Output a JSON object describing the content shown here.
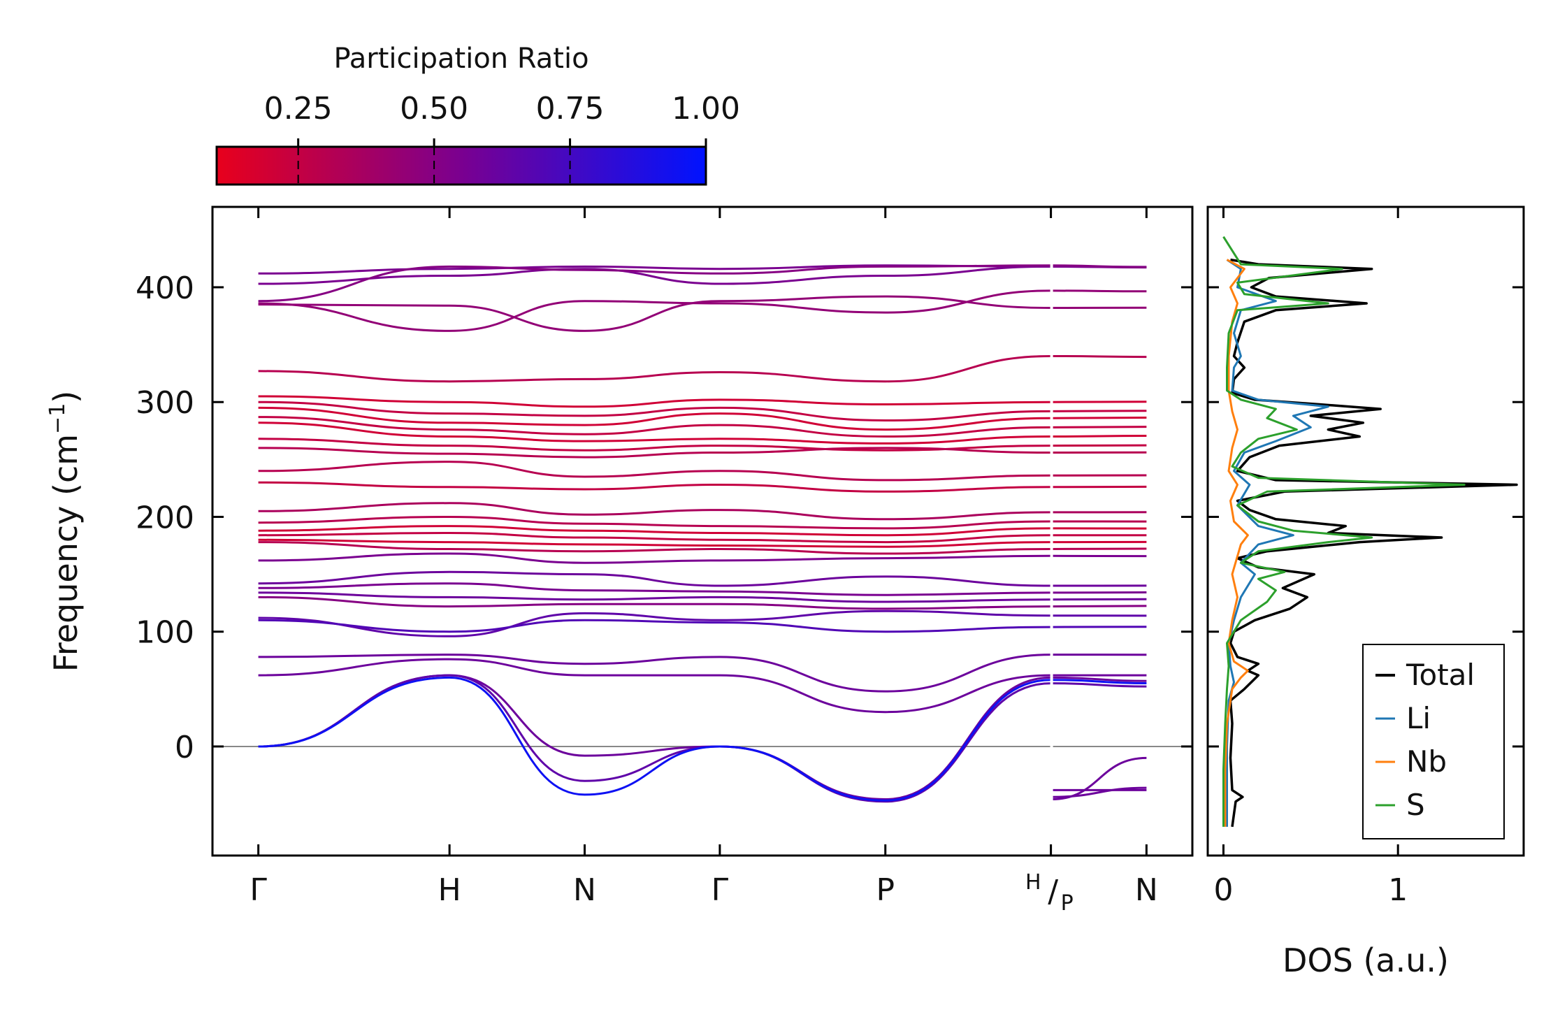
{
  "chart_data": [
    {
      "type": "line",
      "name": "phonon-band-structure",
      "ylabel_main": "Frequency (cm",
      "ylabel_sup": "−1",
      "ylabel_end": ")",
      "ylim": [
        -95,
        470
      ],
      "yticks": [
        0,
        100,
        200,
        300,
        400
      ],
      "ytick_labels": [
        "0",
        "100",
        "200",
        "300",
        "400"
      ],
      "path_labels": [
        "Γ",
        "H",
        "N",
        "Γ",
        "P"
      ],
      "path_positions": [
        0,
        1.0,
        1.707,
        2.414,
        3.28,
        4.146,
        4.646
      ],
      "hp_label": {
        "top": "H",
        "bottom": "P"
      },
      "end_label": "N",
      "xrange": [
        -0.24,
        4.886
      ],
      "segment_break": 4.146,
      "zero_line": true,
      "colormap": {
        "low_color": "#e8001c",
        "mid_color": "#7a0090",
        "high_color": "#0013ff"
      },
      "flat_bands": [
        {
          "values": [
            412,
            416,
            418,
            416,
            419,
            418
          ],
          "pr": 0.55
        },
        {
          "values": [
            403,
            410,
            416,
            403,
            410,
            418
          ],
          "pr": 0.55
        },
        {
          "values": [
            388,
            418,
            415,
            412,
            418,
            419
          ],
          "pr": 0.5
        },
        {
          "values": [
            386,
            362,
            388,
            386,
            378,
            397
          ],
          "pr": 0.45
        },
        {
          "values": [
            385,
            384,
            362,
            388,
            392,
            382
          ],
          "pr": 0.45
        },
        {
          "values": [
            327,
            318,
            320,
            326,
            318,
            340
          ],
          "pr": 0.3
        },
        {
          "values": [
            305,
            300,
            296,
            302,
            298,
            300
          ],
          "pr": 0.2
        },
        {
          "values": [
            300,
            290,
            288,
            295,
            284,
            292
          ],
          "pr": 0.25
        },
        {
          "values": [
            295,
            282,
            280,
            290,
            276,
            286
          ],
          "pr": 0.2
        },
        {
          "values": [
            287,
            276,
            272,
            280,
            270,
            278
          ],
          "pr": 0.25
        },
        {
          "values": [
            282,
            270,
            266,
            268,
            264,
            270
          ],
          "pr": 0.2
        },
        {
          "values": [
            268,
            262,
            258,
            262,
            258,
            262
          ],
          "pr": 0.25
        },
        {
          "values": [
            260,
            255,
            252,
            256,
            260,
            256
          ],
          "pr": 0.3
        },
        {
          "values": [
            240,
            248,
            235,
            240,
            232,
            236
          ],
          "pr": 0.3
        },
        {
          "values": [
            230,
            226,
            224,
            228,
            222,
            226
          ],
          "pr": 0.25
        },
        {
          "values": [
            205,
            212,
            202,
            206,
            198,
            204
          ],
          "pr": 0.35
        },
        {
          "values": [
            195,
            200,
            194,
            192,
            190,
            196
          ],
          "pr": 0.3
        },
        {
          "values": [
            188,
            192,
            188,
            186,
            184,
            190
          ],
          "pr": 0.2
        },
        {
          "values": [
            184,
            186,
            182,
            180,
            178,
            184
          ],
          "pr": 0.25
        },
        {
          "values": [
            180,
            178,
            176,
            175,
            174,
            178
          ],
          "pr": 0.2
        },
        {
          "values": [
            178,
            172,
            170,
            172,
            168,
            172
          ],
          "pr": 0.3
        },
        {
          "values": [
            162,
            168,
            160,
            162,
            164,
            166
          ],
          "pr": 0.55
        },
        {
          "values": [
            142,
            152,
            150,
            140,
            148,
            140
          ],
          "pr": 0.6
        },
        {
          "values": [
            138,
            142,
            136,
            135,
            132,
            134
          ],
          "pr": 0.55
        },
        {
          "values": [
            134,
            130,
            128,
            130,
            126,
            128
          ],
          "pr": 0.6
        },
        {
          "values": [
            130,
            122,
            124,
            124,
            120,
            122
          ],
          "pr": 0.5
        },
        {
          "values": [
            112,
            96,
            116,
            110,
            118,
            114
          ],
          "pr": 0.65
        },
        {
          "values": [
            110,
            100,
            110,
            108,
            100,
            104
          ],
          "pr": 0.7
        }
      ],
      "acoustic_bands": [
        {
          "values": [
            78,
            80,
            72,
            78,
            48,
            80
          ],
          "pr": 0.6
        },
        {
          "values": [
            62,
            76,
            62,
            62,
            30,
            62
          ],
          "pr": 0.6
        },
        {
          "values": [
            0,
            62,
            -8,
            0,
            -46,
            60
          ],
          "pr": 0.6
        },
        {
          "values": [
            0,
            62,
            -30,
            0,
            -48,
            55
          ],
          "pr": 0.65
        },
        {
          "values": [
            0,
            60,
            -42,
            0,
            -47,
            58
          ],
          "pr": 0.95
        }
      ],
      "last_segment_extra": [
        {
          "values": [
            -46,
            -10
          ],
          "pr": 0.6
        },
        {
          "values": [
            -38,
            -38
          ],
          "pr": 0.6
        },
        {
          "values": [
            -44,
            -36
          ],
          "pr": 0.6
        }
      ]
    },
    {
      "type": "line",
      "name": "phonon-dos",
      "xlabel": "DOS (a.u.)",
      "xlim": [
        -0.09,
        1.72
      ],
      "xticks": [
        0,
        1
      ],
      "xtick_labels": [
        "0",
        "1"
      ],
      "ylim": [
        -95,
        470
      ],
      "series": [
        {
          "name": "Total",
          "color": "#000000",
          "points": [
            [
              0.05,
              -70
            ],
            [
              0.07,
              -48
            ],
            [
              0.11,
              -44
            ],
            [
              0.05,
              -38
            ],
            [
              0.04,
              -10
            ],
            [
              0.05,
              20
            ],
            [
              0.04,
              40
            ],
            [
              0.12,
              50
            ],
            [
              0.2,
              62
            ],
            [
              0.14,
              66
            ],
            [
              0.2,
              72
            ],
            [
              0.08,
              78
            ],
            [
              0.04,
              90
            ],
            [
              0.06,
              100
            ],
            [
              0.18,
              110
            ],
            [
              0.38,
              120
            ],
            [
              0.48,
              130
            ],
            [
              0.34,
              138
            ],
            [
              0.52,
              150
            ],
            [
              0.2,
              156
            ],
            [
              0.08,
              164
            ],
            [
              0.25,
              170
            ],
            [
              0.78,
              178
            ],
            [
              1.25,
              182
            ],
            [
              0.6,
              186
            ],
            [
              0.7,
              192
            ],
            [
              0.3,
              198
            ],
            [
              0.15,
              206
            ],
            [
              0.08,
              214
            ],
            [
              0.35,
              222
            ],
            [
              1.68,
              228
            ],
            [
              0.3,
              232
            ],
            [
              0.08,
              240
            ],
            [
              0.15,
              252
            ],
            [
              0.32,
              262
            ],
            [
              0.78,
              270
            ],
            [
              0.6,
              276
            ],
            [
              0.8,
              282
            ],
            [
              0.5,
              288
            ],
            [
              0.9,
              294
            ],
            [
              0.55,
              298
            ],
            [
              0.18,
              302
            ],
            [
              0.05,
              308
            ],
            [
              0.06,
              320
            ],
            [
              0.12,
              330
            ],
            [
              0.06,
              340
            ],
            [
              0.08,
              352
            ],
            [
              0.12,
              370
            ],
            [
              0.3,
              380
            ],
            [
              0.82,
              386
            ],
            [
              0.3,
              392
            ],
            [
              0.16,
              400
            ],
            [
              0.26,
              408
            ],
            [
              0.85,
              416
            ],
            [
              0.2,
              420
            ],
            [
              0.04,
              424
            ]
          ]
        },
        {
          "name": "Li",
          "color": "#1f77b4",
          "points": [
            [
              0.02,
              -70
            ],
            [
              0.02,
              -40
            ],
            [
              0.02,
              0
            ],
            [
              0.03,
              40
            ],
            [
              0.06,
              56
            ],
            [
              0.04,
              70
            ],
            [
              0.03,
              90
            ],
            [
              0.06,
              110
            ],
            [
              0.1,
              130
            ],
            [
              0.18,
              150
            ],
            [
              0.1,
              160
            ],
            [
              0.2,
              176
            ],
            [
              0.4,
              184
            ],
            [
              0.2,
              192
            ],
            [
              0.08,
              210
            ],
            [
              0.15,
              228
            ],
            [
              0.06,
              240
            ],
            [
              0.12,
              256
            ],
            [
              0.3,
              266
            ],
            [
              0.5,
              278
            ],
            [
              0.4,
              288
            ],
            [
              0.6,
              296
            ],
            [
              0.2,
              302
            ],
            [
              0.05,
              310
            ],
            [
              0.06,
              330
            ],
            [
              0.1,
              340
            ],
            [
              0.06,
              360
            ],
            [
              0.1,
              380
            ],
            [
              0.3,
              388
            ],
            [
              0.08,
              400
            ],
            [
              0.1,
              416
            ],
            [
              0.02,
              424
            ]
          ]
        },
        {
          "name": "Nb",
          "color": "#ff7f0e",
          "points": [
            [
              0.01,
              -70
            ],
            [
              0.01,
              -20
            ],
            [
              0.02,
              20
            ],
            [
              0.05,
              50
            ],
            [
              0.1,
              60
            ],
            [
              0.14,
              66
            ],
            [
              0.06,
              74
            ],
            [
              0.03,
              90
            ],
            [
              0.05,
              110
            ],
            [
              0.08,
              130
            ],
            [
              0.05,
              150
            ],
            [
              0.1,
              176
            ],
            [
              0.14,
              184
            ],
            [
              0.06,
              196
            ],
            [
              0.04,
              214
            ],
            [
              0.08,
              228
            ],
            [
              0.03,
              240
            ],
            [
              0.05,
              260
            ],
            [
              0.08,
              276
            ],
            [
              0.05,
              292
            ],
            [
              0.03,
              310
            ],
            [
              0.03,
              340
            ],
            [
              0.05,
              370
            ],
            [
              0.08,
              386
            ],
            [
              0.04,
              400
            ],
            [
              0.12,
              416
            ],
            [
              0.02,
              424
            ]
          ]
        },
        {
          "name": "S",
          "color": "#2ca02c",
          "points": [
            [
              0.0,
              -70
            ],
            [
              0.0,
              -20
            ],
            [
              0.01,
              20
            ],
            [
              0.02,
              50
            ],
            [
              0.03,
              70
            ],
            [
              0.02,
              90
            ],
            [
              0.1,
              110
            ],
            [
              0.25,
              126
            ],
            [
              0.3,
              136
            ],
            [
              0.2,
              146
            ],
            [
              0.35,
              152
            ],
            [
              0.1,
              160
            ],
            [
              0.2,
              170
            ],
            [
              0.6,
              178
            ],
            [
              0.85,
              182
            ],
            [
              0.4,
              188
            ],
            [
              0.2,
              196
            ],
            [
              0.08,
              210
            ],
            [
              0.25,
              222
            ],
            [
              1.38,
              228
            ],
            [
              0.2,
              234
            ],
            [
              0.05,
              244
            ],
            [
              0.1,
              256
            ],
            [
              0.2,
              268
            ],
            [
              0.42,
              276
            ],
            [
              0.25,
              286
            ],
            [
              0.3,
              294
            ],
            [
              0.1,
              302
            ],
            [
              0.02,
              310
            ],
            [
              0.02,
              330
            ],
            [
              0.03,
              360
            ],
            [
              0.08,
              380
            ],
            [
              0.6,
              386
            ],
            [
              0.12,
              394
            ],
            [
              0.08,
              404
            ],
            [
              0.68,
              416
            ],
            [
              0.1,
              420
            ],
            [
              0.0,
              444
            ]
          ]
        }
      ],
      "legend": {
        "position": "bottom-right",
        "entries": [
          "Total",
          "Li",
          "Nb",
          "S"
        ]
      }
    },
    {
      "type": "colorbar",
      "name": "participation-ratio-colorbar",
      "title": "Participation Ratio",
      "range": [
        0.1,
        1.0
      ],
      "ticks": [
        0.25,
        0.5,
        0.75,
        1.0
      ],
      "tick_labels": [
        "0.25",
        "0.50",
        "0.75",
        "1.00"
      ]
    }
  ]
}
